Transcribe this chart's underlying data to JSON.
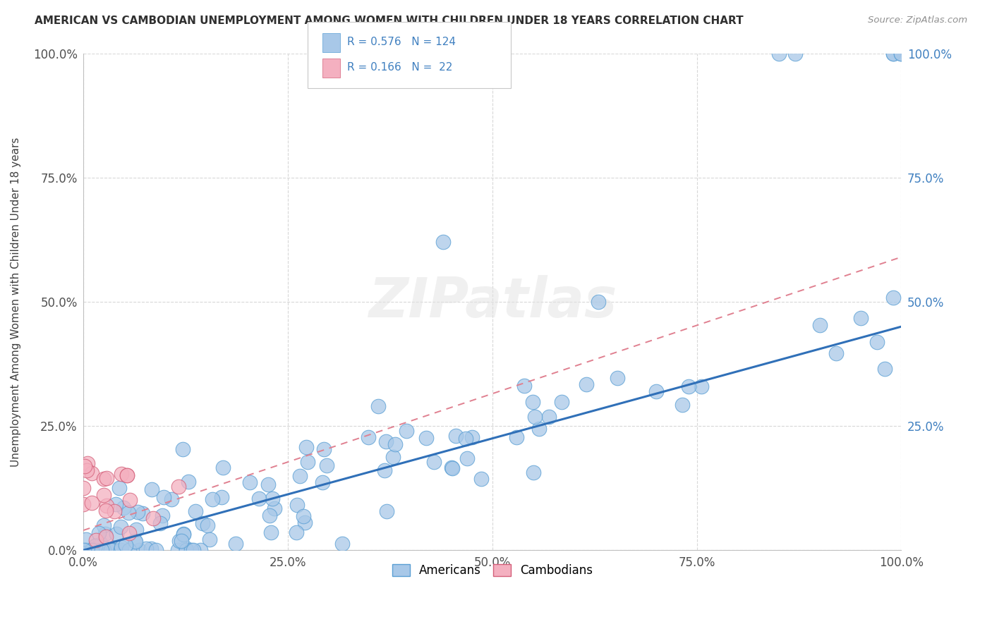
{
  "title": "AMERICAN VS CAMBODIAN UNEMPLOYMENT AMONG WOMEN WITH CHILDREN UNDER 18 YEARS CORRELATION CHART",
  "source": "Source: ZipAtlas.com",
  "ylabel": "Unemployment Among Women with Children Under 18 years",
  "american_color": "#a8c8e8",
  "american_edge_color": "#5a9fd4",
  "cambodian_color": "#f4b0c0",
  "cambodian_edge_color": "#d4607a",
  "american_line_color": "#3070b8",
  "cambodian_line_color": "#e08090",
  "title_color": "#303030",
  "source_color": "#909090",
  "right_label_color": "#4080c0",
  "grid_color": "#d8d8d8",
  "watermark_color": "#e8e8e8",
  "legend_box_color": "#cccccc",
  "slope_am": 0.45,
  "intercept_am": 0.0,
  "slope_cam": 0.55,
  "intercept_cam": 0.04
}
